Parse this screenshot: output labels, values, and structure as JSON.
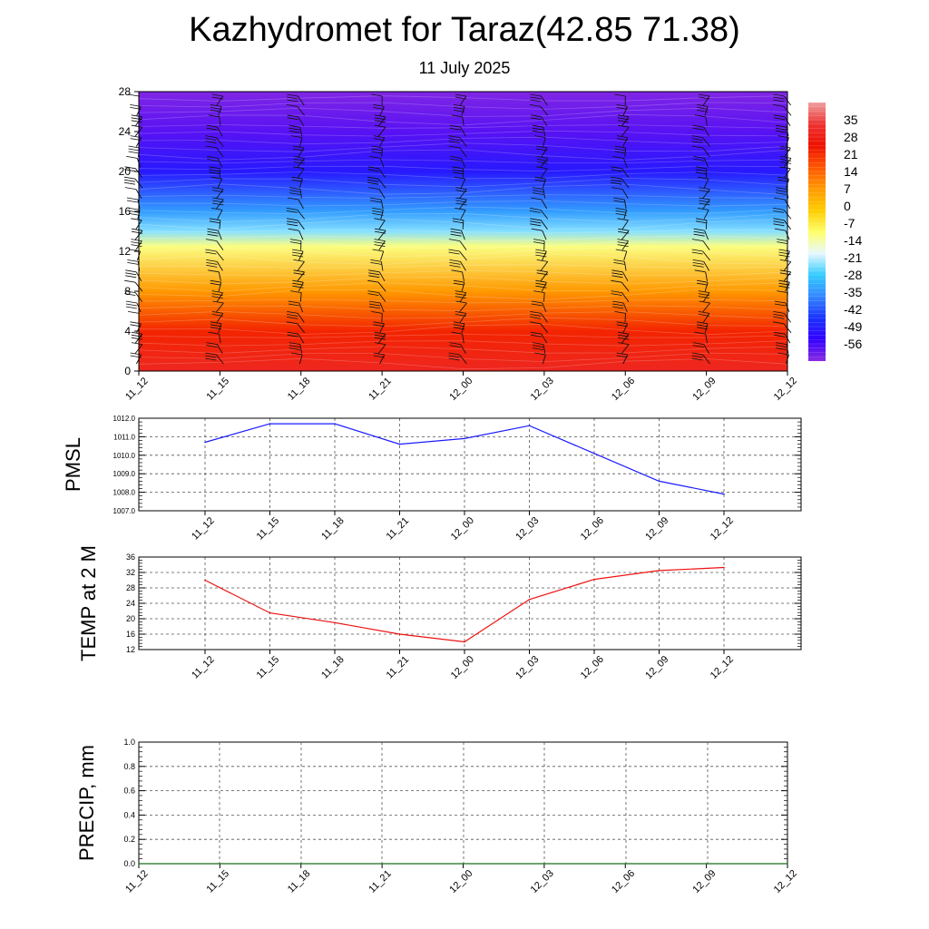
{
  "title": "Kazhydromet for Taraz(42.85 71.38)",
  "subtitle": "11 July 2025",
  "colors": {
    "pressure_line": "#1a1aff",
    "temperature_line": "#ee1111",
    "precip_line": "#1a6b1a"
  },
  "chart_data": [
    {
      "type": "heatmap",
      "title": "",
      "x_categories": [
        "11_12",
        "11_15",
        "11_18",
        "11_21",
        "12_00",
        "12_03",
        "12_06",
        "12_09",
        "12_12"
      ],
      "y_ticks": [
        0,
        4,
        8,
        12,
        16,
        20,
        24,
        28
      ],
      "ylim": [
        0,
        28
      ],
      "colorbar_ticks": [
        35,
        28,
        21,
        14,
        7,
        0,
        -7,
        -14,
        -21,
        -28,
        -35,
        -42,
        -49,
        -56
      ],
      "colorbar_range": [
        -63,
        42
      ],
      "colormap": [
        "#8a2be2",
        "#3300ff",
        "#1a33ff",
        "#3388ff",
        "#33ccff",
        "#e8f8ff",
        "#ffff66",
        "#ffcc00",
        "#ff9900",
        "#ff5500",
        "#ee1100",
        "#ee3333",
        "#f0a0a0"
      ],
      "temperature_profile": [
        {
          "level": 0,
          "value": 30
        },
        {
          "level": 4,
          "value": 22
        },
        {
          "level": 8,
          "value": 7
        },
        {
          "level": 12.5,
          "value": -12
        },
        {
          "level": 14,
          "value": -24
        },
        {
          "level": 16,
          "value": -34
        },
        {
          "level": 20,
          "value": -50
        },
        {
          "level": 24,
          "value": -58
        },
        {
          "level": 28,
          "value": -62
        }
      ],
      "overlay": "wind barbs",
      "grid": false
    },
    {
      "type": "line",
      "ylabel": "PMSL",
      "categories": [
        "11_12",
        "11_15",
        "11_18",
        "11_21",
        "12_00",
        "12_03",
        "12_06",
        "12_09",
        "12_12"
      ],
      "values": [
        1010.7,
        1011.7,
        1011.7,
        1010.6,
        1010.9,
        1011.6,
        1010.1,
        1008.6,
        1007.9
      ],
      "ylim": [
        1007.0,
        1012.0
      ],
      "yticks": [
        "1007.0",
        "1008.0",
        "1009.0",
        "1010.0",
        "1011.0",
        "1012.0"
      ],
      "grid": true
    },
    {
      "type": "line",
      "ylabel": "TEMP at 2 M",
      "categories": [
        "11_12",
        "11_15",
        "11_18",
        "11_21",
        "12_00",
        "12_03",
        "12_06",
        "12_09",
        "12_12"
      ],
      "values": [
        30,
        21.5,
        19,
        16,
        14,
        25,
        30.2,
        32.5,
        33.3
      ],
      "ylim": [
        12,
        36
      ],
      "yticks": [
        "12",
        "16",
        "20",
        "24",
        "28",
        "32",
        "36"
      ],
      "grid": true
    },
    {
      "type": "line",
      "ylabel": "PRECIP, mm",
      "categories": [
        "11_12",
        "11_15",
        "11_18",
        "11_21",
        "12_00",
        "12_03",
        "12_06",
        "12_09",
        "12_12"
      ],
      "values": [
        0,
        0,
        0,
        0,
        0,
        0,
        0,
        0,
        0
      ],
      "ylim": [
        0,
        1.0
      ],
      "yticks": [
        "0.0",
        "0.2",
        "0.4",
        "0.6",
        "0.8",
        "1.0"
      ],
      "grid": true
    }
  ]
}
